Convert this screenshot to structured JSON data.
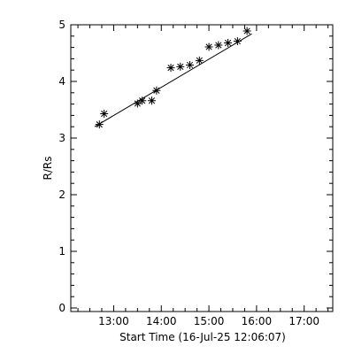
{
  "chart_data": {
    "type": "scatter",
    "title": "",
    "xlabel": "Start Time (16-Jul-25 12:06:07)",
    "ylabel": "R/Rs",
    "x_unit": "time (HH:MM on 16-Jul-25)",
    "xlim": [
      "12:06",
      "17:36"
    ],
    "ylim": [
      0,
      5
    ],
    "x_ticks": [
      "13:00",
      "14:00",
      "15:00",
      "16:00",
      "17:00"
    ],
    "y_ticks": [
      "0",
      "1",
      "2",
      "3",
      "4",
      "5"
    ],
    "grid": false,
    "legend": "none",
    "series": [
      {
        "marker": "asterisk",
        "points": [
          {
            "x": "12:42",
            "y": 3.24
          },
          {
            "x": "12:48",
            "y": 3.43
          },
          {
            "x": "13:30",
            "y": 3.61
          },
          {
            "x": "13:36",
            "y": 3.66
          },
          {
            "x": "13:48",
            "y": 3.66
          },
          {
            "x": "13:54",
            "y": 3.84
          },
          {
            "x": "14:12",
            "y": 4.24
          },
          {
            "x": "14:24",
            "y": 4.26
          },
          {
            "x": "14:36",
            "y": 4.29
          },
          {
            "x": "14:48",
            "y": 4.37
          },
          {
            "x": "15:00",
            "y": 4.61
          },
          {
            "x": "15:12",
            "y": 4.64
          },
          {
            "x": "15:24",
            "y": 4.68
          },
          {
            "x": "15:36",
            "y": 4.71
          },
          {
            "x": "15:48",
            "y": 4.89
          }
        ]
      }
    ],
    "fit_line": {
      "type": "linear",
      "start": {
        "x": "12:36",
        "y": 3.2
      },
      "end": {
        "x": "15:54",
        "y": 4.84
      }
    }
  },
  "colors": {
    "background": "#ffffff",
    "foreground": "#000000"
  }
}
